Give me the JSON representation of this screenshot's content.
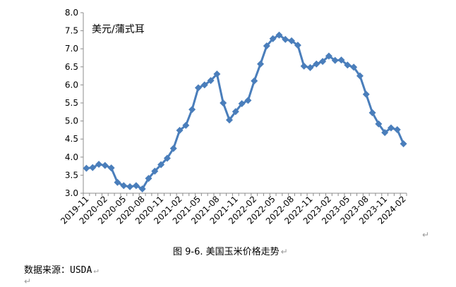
{
  "chart_data": {
    "type": "line",
    "ylabel": "美元/蒲式耳",
    "ylim": [
      3.0,
      8.0
    ],
    "yticks": [
      "3.0",
      "3.5",
      "4.0",
      "4.5",
      "5.0",
      "5.5",
      "6.0",
      "6.5",
      "7.0",
      "7.5",
      "8.0"
    ],
    "xticks": [
      "2019-11",
      "2020-02",
      "2020-05",
      "2020-08",
      "2020-11",
      "2021-02",
      "2021-05",
      "2021-08",
      "2021-11",
      "2022-02",
      "2022-05",
      "2022-08",
      "2022-11",
      "2023-02",
      "2023-05",
      "2023-08",
      "2023-11",
      "2024-02"
    ],
    "grid": false,
    "legend": "none",
    "series": [
      {
        "color": "#4a7ebb",
        "x": [
          "2019-11",
          "2019-12",
          "2020-01",
          "2020-02",
          "2020-03",
          "2020-04",
          "2020-05",
          "2020-06",
          "2020-07",
          "2020-08",
          "2020-09",
          "2020-10",
          "2020-11",
          "2020-12",
          "2021-01",
          "2021-02",
          "2021-03",
          "2021-04",
          "2021-05",
          "2021-06",
          "2021-07",
          "2021-08",
          "2021-09",
          "2021-10",
          "2021-11",
          "2021-12",
          "2022-01",
          "2022-02",
          "2022-03",
          "2022-04",
          "2022-05",
          "2022-06",
          "2022-07",
          "2022-08",
          "2022-09",
          "2022-10",
          "2022-11",
          "2022-12",
          "2023-01",
          "2023-02",
          "2023-03",
          "2023-04",
          "2023-05",
          "2023-06",
          "2023-07",
          "2023-08",
          "2023-09",
          "2023-10",
          "2023-11",
          "2023-12",
          "2024-01",
          "2024-02"
        ],
        "values": [
          3.69,
          3.71,
          3.8,
          3.77,
          3.7,
          3.3,
          3.21,
          3.18,
          3.21,
          3.12,
          3.41,
          3.61,
          3.79,
          3.97,
          4.24,
          4.74,
          4.88,
          5.32,
          5.92,
          6.0,
          6.12,
          6.3,
          5.5,
          5.03,
          5.26,
          5.48,
          5.57,
          6.11,
          6.58,
          7.08,
          7.28,
          7.38,
          7.26,
          7.22,
          7.1,
          6.52,
          6.48,
          6.58,
          6.65,
          6.8,
          6.68,
          6.69,
          6.55,
          6.49,
          6.25,
          5.74,
          5.23,
          4.92,
          4.68,
          4.81,
          4.76,
          4.37
        ]
      }
    ]
  },
  "caption": {
    "text": "图 9-6.  美国玉米价格走势",
    "mark": "↵"
  },
  "source": {
    "text": "数据来源：USDA",
    "mark": "↵"
  },
  "marks": {
    "after_axis": "↵",
    "trailing_line": "↵"
  }
}
